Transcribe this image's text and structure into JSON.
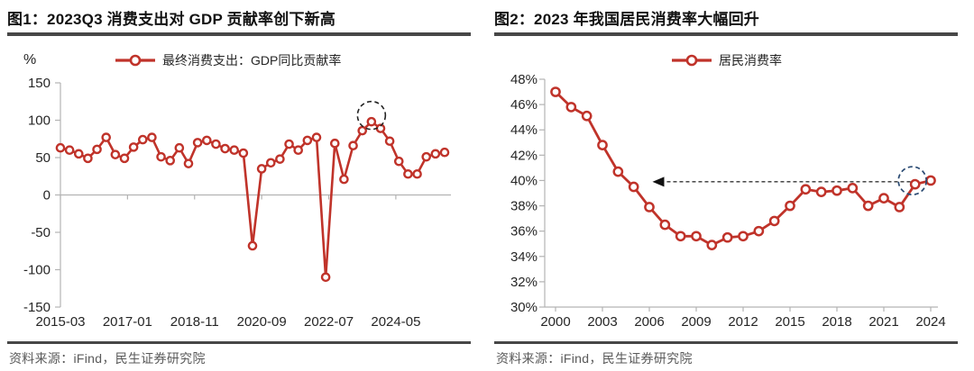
{
  "colors": {
    "series_red": "#c0332a",
    "annotation_black": "#222222",
    "annotation_blue": "#2b4b73",
    "axis_gray": "#b3b3b3",
    "text_dark": "#262626",
    "rule_gray": "#474747",
    "source_gray": "#5a5a5a",
    "marker_fill": "#ffffff"
  },
  "panels": [
    {
      "title": "图1：2023Q3 消费支出对 GDP 贡献率创下新高",
      "source": "资料来源：iFind，民生证券研究院"
    },
    {
      "title": "图2：2023 年我国居民消费率大幅回升",
      "source": "资料来源：iFind，民生证券研究院"
    }
  ],
  "chart_data": [
    {
      "type": "line",
      "title": "图1：2023Q3 消费支出对 GDP 贡献率创下新高",
      "legend": "最终消费支出：GDP同比贡献率",
      "ylabel": "%",
      "ylim": [
        -150,
        150
      ],
      "yticks": [
        150,
        100,
        50,
        0,
        -50,
        -100,
        -150
      ],
      "grid": false,
      "legend_position": "top-center",
      "x_start": "2015-03",
      "x_step_months": 3,
      "x_tick_labels": [
        "2015-03",
        "2017-01",
        "2018-11",
        "2020-09",
        "2022-07",
        "2024-05"
      ],
      "x_tick_month_offsets": [
        0,
        22,
        44,
        66,
        88,
        110
      ],
      "total_month_span": 126,
      "values": [
        63,
        60,
        55,
        49,
        61,
        77,
        54,
        49,
        64,
        74,
        77,
        51,
        46,
        63,
        42,
        70,
        73,
        68,
        62,
        60,
        56,
        -68,
        35,
        43,
        48,
        68,
        60,
        73,
        77,
        -110,
        69,
        21,
        66,
        86,
        98,
        89,
        72,
        45,
        28,
        28,
        51,
        55,
        57
      ],
      "annotations": {
        "dashed_circle_point_index": 34,
        "dashed_circle_note": "2023Q3 peak ~98%"
      }
    },
    {
      "type": "line",
      "title": "图2：2023 年我国居民消费率大幅回升",
      "legend": "居民消费率",
      "ylim": [
        30,
        48
      ],
      "yticks": [
        48,
        46,
        44,
        42,
        40,
        38,
        36,
        34,
        32,
        30
      ],
      "ytick_labels": [
        "48%",
        "46%",
        "44%",
        "42%",
        "40%",
        "38%",
        "36%",
        "34%",
        "32%",
        "30%"
      ],
      "grid": false,
      "legend_position": "top-center",
      "x": [
        2000,
        2001,
        2002,
        2003,
        2004,
        2005,
        2006,
        2007,
        2008,
        2009,
        2010,
        2011,
        2012,
        2013,
        2014,
        2015,
        2016,
        2017,
        2018,
        2019,
        2020,
        2021,
        2022,
        2023,
        2024
      ],
      "x_tick_labels": [
        "2000",
        "2003",
        "2006",
        "2009",
        "2012",
        "2015",
        "2018",
        "2021",
        "2024"
      ],
      "values": [
        47.0,
        45.8,
        45.1,
        42.8,
        40.7,
        39.5,
        37.9,
        36.5,
        35.6,
        35.6,
        34.9,
        35.5,
        35.6,
        36.0,
        36.8,
        38.0,
        39.3,
        39.1,
        39.2,
        39.4,
        38.0,
        38.6,
        37.9,
        39.7,
        40.0
      ],
      "annotations": {
        "dashed_circle_x": 2023,
        "arrow": {
          "y": 39.9,
          "from_x": 2022.7,
          "to_x": 2006.2,
          "direction": "left"
        }
      }
    }
  ]
}
